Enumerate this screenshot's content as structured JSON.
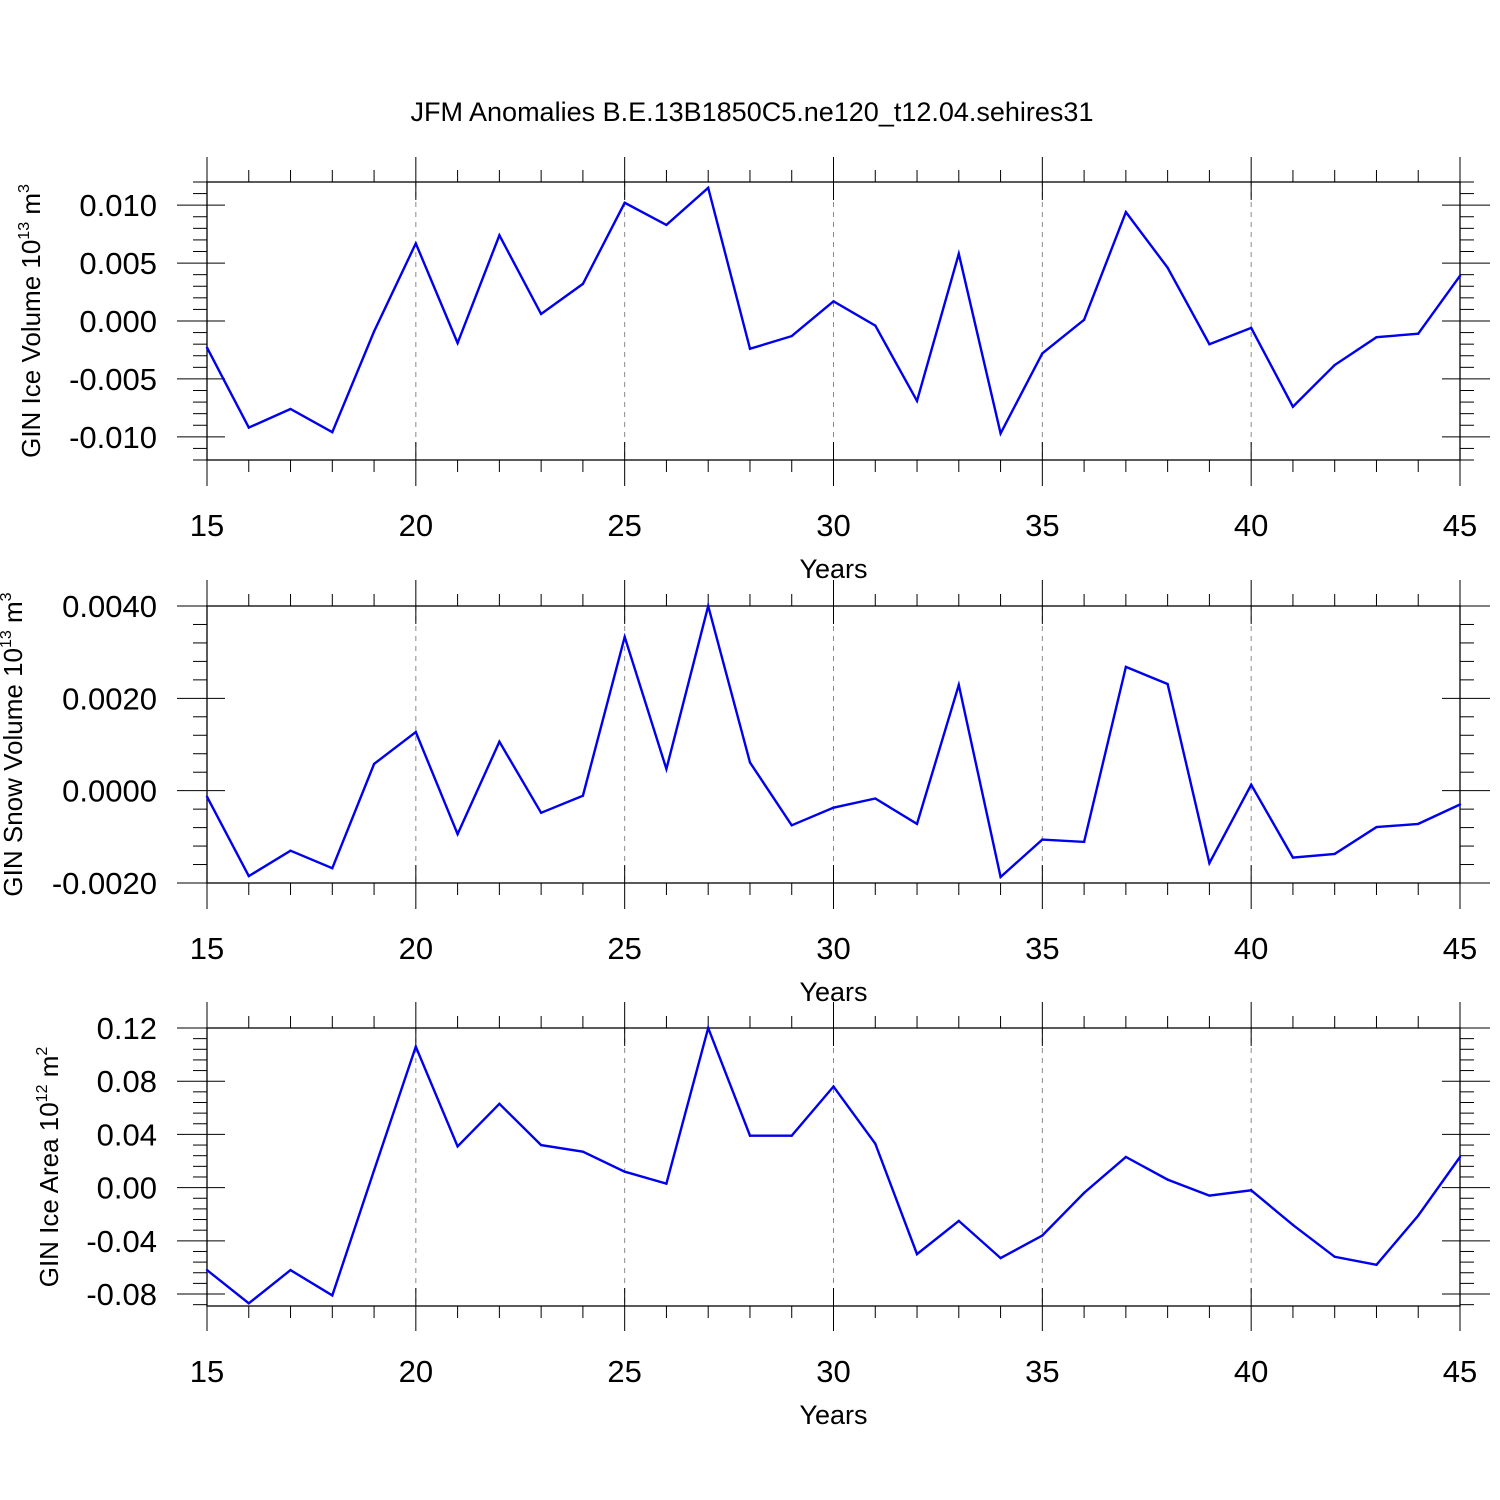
{
  "title": "JFM Anomalies B.E.13B1850C5.ne120_t12.04.sehires31",
  "line_color": "#0000ee",
  "chart_data": [
    {
      "type": "line",
      "ylabel": "GIN Ice Volume 10",
      "ylabel_exp": "13",
      "ylabel_unit": "m",
      "ylabel_unit_exp": "3",
      "xlabel": "Years",
      "xlim": [
        15,
        45
      ],
      "ylim": [
        -0.012,
        0.012
      ],
      "xticks": [
        15,
        20,
        25,
        30,
        35,
        40,
        45
      ],
      "xtick_labels": [
        "15",
        "20",
        "25",
        "30",
        "35",
        "40",
        "45"
      ],
      "yticks": [
        -0.01,
        -0.005,
        0.0,
        0.005,
        0.01
      ],
      "ytick_labels": [
        "-0.010",
        "-0.005",
        "0.000",
        "0.005",
        "0.010"
      ],
      "grid": "dashed vertical at major x ticks",
      "x": [
        15,
        16,
        17,
        18,
        19,
        20,
        21,
        22,
        23,
        24,
        25,
        26,
        27,
        28,
        29,
        30,
        31,
        32,
        33,
        34,
        35,
        36,
        37,
        38,
        39,
        40,
        41,
        42,
        43,
        44,
        45
      ],
      "y": [
        -0.0023,
        -0.0092,
        -0.0076,
        -0.0096,
        -0.0009,
        0.0067,
        -0.0019,
        0.0074,
        0.0006,
        0.0032,
        0.0102,
        0.0083,
        0.0115,
        -0.0024,
        -0.0013,
        0.0017,
        -0.0004,
        -0.0069,
        0.0058,
        -0.0097,
        -0.0028,
        0.0001,
        0.0094,
        0.0046,
        -0.002,
        -0.0006,
        -0.0074,
        -0.0038,
        -0.0014,
        -0.0011,
        0.0039
      ]
    },
    {
      "type": "line",
      "ylabel": "GIN Snow Volume 10",
      "ylabel_exp": "13",
      "ylabel_unit": "m",
      "ylabel_unit_exp": "3",
      "xlabel": "Years",
      "xlim": [
        15,
        45
      ],
      "ylim": [
        -0.002,
        0.004
      ],
      "xticks": [
        15,
        20,
        25,
        30,
        35,
        40,
        45
      ],
      "xtick_labels": [
        "15",
        "20",
        "25",
        "30",
        "35",
        "40",
        "45"
      ],
      "yticks": [
        -0.002,
        0.0,
        0.002,
        0.004
      ],
      "ytick_labels": [
        "-0.0020",
        "0.0000",
        "0.0020",
        "0.0040"
      ],
      "grid": "dashed vertical at major x ticks",
      "x": [
        15,
        16,
        17,
        18,
        19,
        20,
        21,
        22,
        23,
        24,
        25,
        26,
        27,
        28,
        29,
        30,
        31,
        32,
        33,
        34,
        35,
        36,
        37,
        38,
        39,
        40,
        41,
        42,
        43,
        44,
        45
      ],
      "y": [
        -0.00013,
        -0.00185,
        -0.0013,
        -0.00168,
        0.00058,
        0.00127,
        -0.00094,
        0.00106,
        -0.00048,
        -0.00011,
        0.00333,
        0.00047,
        0.004,
        0.00061,
        -0.00075,
        -0.00037,
        -0.00017,
        -0.00072,
        0.00229,
        -0.00187,
        -0.00106,
        -0.00111,
        0.00268,
        0.00231,
        -0.00157,
        0.00013,
        -0.00145,
        -0.00137,
        -0.00079,
        -0.00072,
        -0.0003
      ]
    },
    {
      "type": "line",
      "ylabel": "GIN Ice Area 10",
      "ylabel_exp": "12",
      "ylabel_unit": "m",
      "ylabel_unit_exp": "2",
      "xlabel": "Years",
      "xlim": [
        15,
        45
      ],
      "ylim": [
        -0.089,
        0.12
      ],
      "xticks": [
        15,
        20,
        25,
        30,
        35,
        40,
        45
      ],
      "xtick_labels": [
        "15",
        "20",
        "25",
        "30",
        "35",
        "40",
        "45"
      ],
      "yticks": [
        -0.08,
        -0.04,
        0.0,
        0.04,
        0.08,
        0.12
      ],
      "ytick_labels": [
        "-0.08",
        "-0.04",
        "0.00",
        "0.04",
        "0.08",
        "0.12"
      ],
      "grid": "dashed vertical at major x ticks",
      "x": [
        15,
        16,
        17,
        18,
        19,
        20,
        21,
        22,
        23,
        24,
        25,
        26,
        27,
        28,
        29,
        30,
        31,
        32,
        33,
        34,
        35,
        36,
        37,
        38,
        39,
        40,
        41,
        42,
        43,
        44,
        45
      ],
      "y": [
        -0.062,
        -0.087,
        -0.062,
        -0.081,
        0.013,
        0.106,
        0.031,
        0.063,
        0.032,
        0.027,
        0.012,
        0.003,
        0.12,
        0.039,
        0.039,
        0.076,
        0.033,
        -0.05,
        -0.025,
        -0.053,
        -0.036,
        -0.004,
        0.023,
        0.006,
        -0.006,
        -0.002,
        -0.028,
        -0.052,
        -0.058,
        -0.021,
        0.023
      ]
    }
  ]
}
